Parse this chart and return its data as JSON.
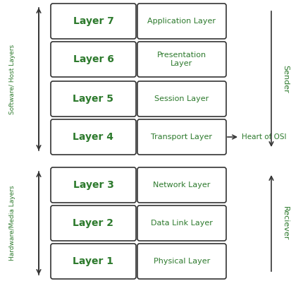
{
  "layers": [
    {
      "label": "Layer 7",
      "desc": "Application Layer"
    },
    {
      "label": "Layer 6",
      "desc": "Presentation\nLayer"
    },
    {
      "label": "Layer 5",
      "desc": "Session Layer"
    },
    {
      "label": "Layer 4",
      "desc": "Transport Layer"
    },
    {
      "label": "Layer 3",
      "desc": "Network Layer"
    },
    {
      "label": "Layer 2",
      "desc": "Data Link Layer"
    },
    {
      "label": "Layer 1",
      "desc": "Physical Layer"
    }
  ],
  "green": "#2d7a2d",
  "box_edge": "#333333",
  "bg": "#ffffff",
  "software_label": "Software/ Host Layers",
  "hardware_label": "Hardware/Media Layers",
  "sender_label": "Sender",
  "receiver_label": "Reciever",
  "heart_label": "Heart of OSI"
}
